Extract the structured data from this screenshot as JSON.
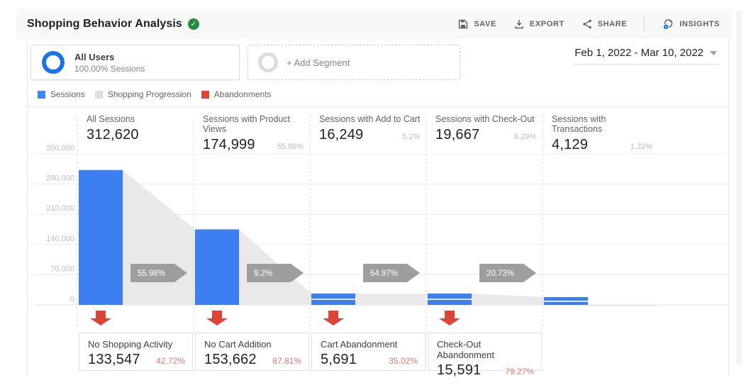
{
  "header": {
    "title": "Shopping Behavior Analysis",
    "verified_icon": "check",
    "toolbar": {
      "save_label": "SAVE",
      "export_label": "EXPORT",
      "share_label": "SHARE",
      "insights_label": "INSIGHTS",
      "icons": [
        "floppy-save-icon",
        "download-export-icon",
        "share-nodes-icon",
        "intelligence-insights-icon"
      ]
    }
  },
  "segments": {
    "all_users": {
      "name": "All Users",
      "detail": "100.00% Sessions"
    },
    "add_segment": {
      "label": "+ Add Segment"
    }
  },
  "date_range": "Feb 1, 2022 - Mar 10, 2022",
  "legend": [
    {
      "label": "Sessions",
      "color": "#4285F4"
    },
    {
      "label": "Shopping Progression",
      "color": "#E0E0E0"
    },
    {
      "label": "Abandonments",
      "color": "#DB4437"
    }
  ],
  "chart_data": {
    "type": "funnel-bar",
    "title": "Shopping Behavior Analysis funnel",
    "y_axis": {
      "ticks": [
        "350,000",
        "280,000",
        "210,000",
        "140,000",
        "70,000",
        "0"
      ],
      "max": 350000,
      "min": 0
    },
    "grid": "horizontal",
    "stages": [
      {
        "label": "All Sessions",
        "value": "312,620",
        "value_num": 312620,
        "percent": ""
      },
      {
        "label": "Sessions with Product Views",
        "value": "174,999",
        "value_num": 174999,
        "percent": "55.98%"
      },
      {
        "label": "Sessions with Add to Cart",
        "value": "16,249",
        "value_num": 16249,
        "percent": "5.2%"
      },
      {
        "label": "Sessions with Check-Out",
        "value": "19,667",
        "value_num": 19667,
        "percent": "6.29%"
      },
      {
        "label": "Sessions with Transactions",
        "value": "4,129",
        "value_num": 4129,
        "percent": "1.32%"
      }
    ],
    "progression_arrows": [
      "55.98%",
      "9.2%",
      "64.97%",
      "20.73%"
    ],
    "abandonments": [
      {
        "label": "No Shopping Activity",
        "value": "133,547",
        "percent": "42.72%"
      },
      {
        "label": "No Cart Addition",
        "value": "153,662",
        "percent": "87.81%"
      },
      {
        "label": "Cart Abandonment",
        "value": "5,691",
        "percent": "35.02%"
      },
      {
        "label": "Check-Out Abandonment",
        "value": "15,591",
        "percent": "79.27%"
      }
    ],
    "colors": {
      "bar": "#3D7EF0",
      "progression": "#E9E9E9",
      "arrow": "#9E9E9E",
      "abandonment": "#DB4437",
      "grid": "#ECECEC",
      "tick_text": "#BDBDBD"
    }
  }
}
